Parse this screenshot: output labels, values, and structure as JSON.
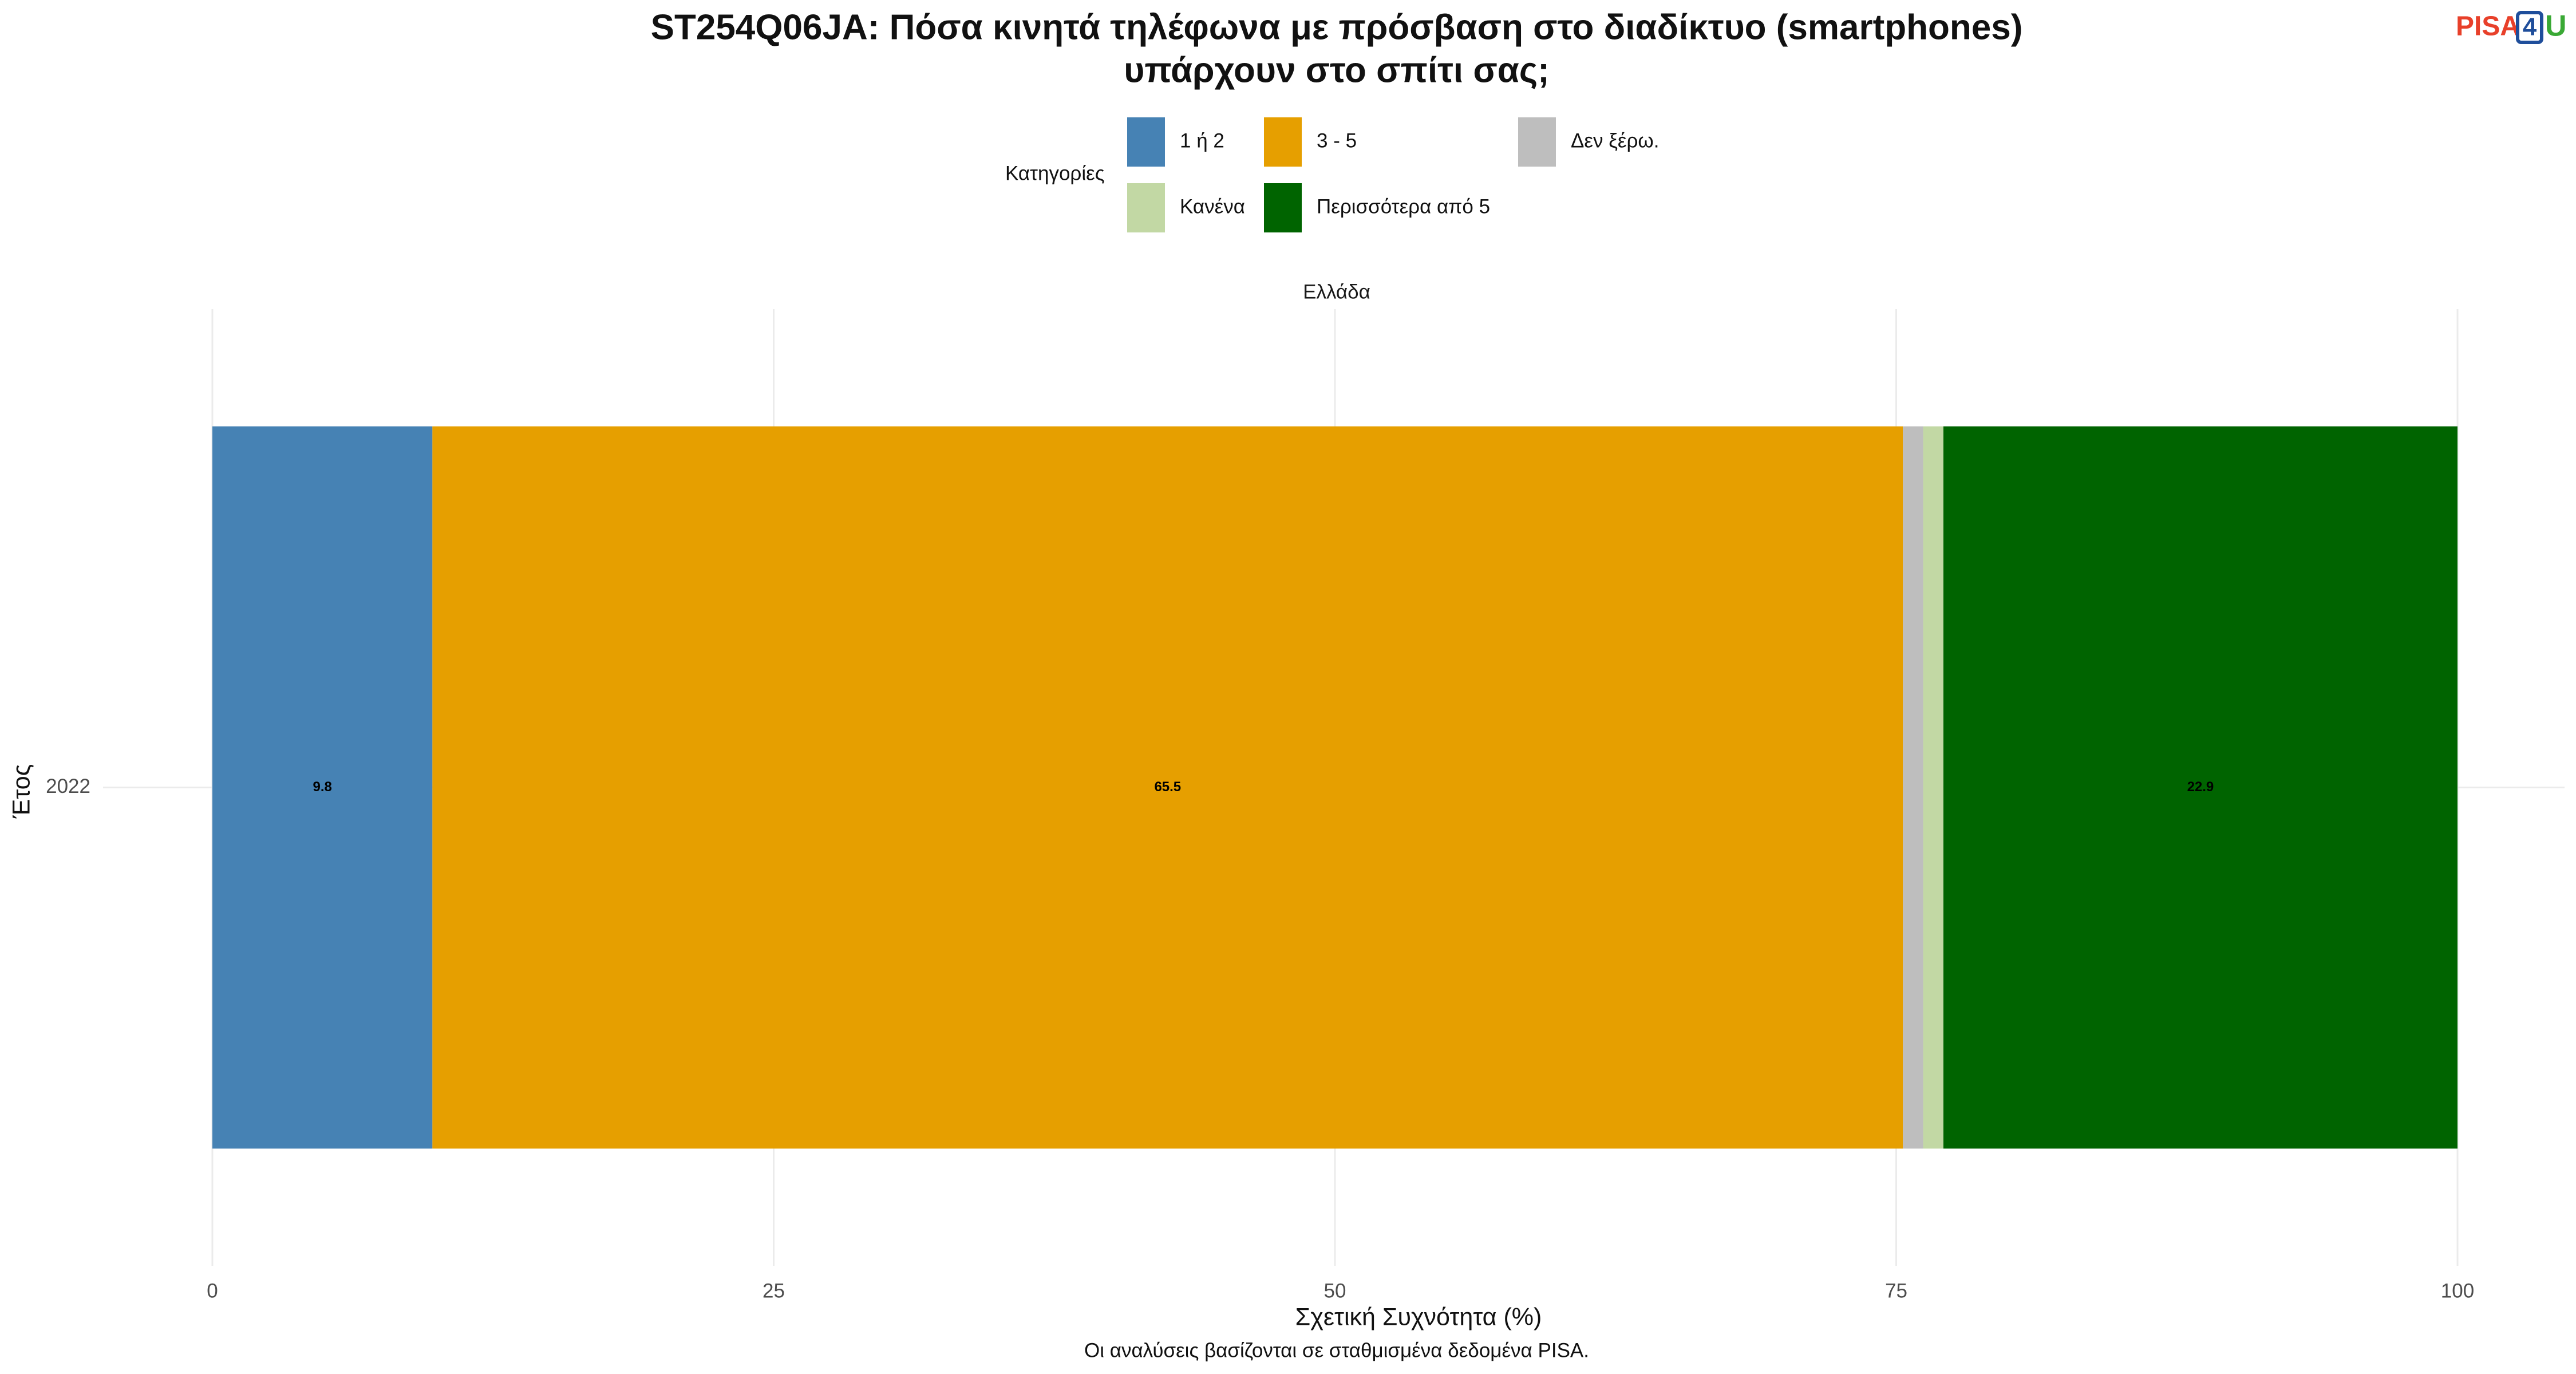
{
  "chart_data": {
    "type": "stacked_barh",
    "title": [
      "ST254Q06JA: Πόσα κινητά τηλέφωνα με πρόσβαση στο διαδίκτυο (smartphones)",
      "υπάρχουν στο σπίτι σας;"
    ],
    "logo": [
      "PISA",
      "4",
      "U"
    ],
    "facet": "Ελλάδα",
    "categories": [
      "2022"
    ],
    "series": [
      {
        "name": "1 ή 2",
        "color": "#4682b4",
        "values": [
          9.8
        ]
      },
      {
        "name": "3 - 5",
        "color": "#e69f00",
        "values": [
          65.5
        ]
      },
      {
        "name": "Δεν ξέρω.",
        "color": "#bebebe",
        "values": [
          0.9
        ]
      },
      {
        "name": "Κανένα",
        "color": "#c2d8a4",
        "values": [
          0.9
        ]
      },
      {
        "name": "Περισσότερα από 5",
        "color": "#006400",
        "values": [
          22.9
        ]
      }
    ],
    "legend_title": "Κατηγορίες",
    "xlim": [
      0,
      100
    ],
    "xticks": [
      0,
      25,
      50,
      75,
      100
    ],
    "xlabel": "Σχετική Συχνότητα (%)",
    "ylabel": "Έτος",
    "caption": "Οι αναλύσεις βασίζονται σε σταθμισμένα δεδομένα PISA.",
    "grid": true
  }
}
